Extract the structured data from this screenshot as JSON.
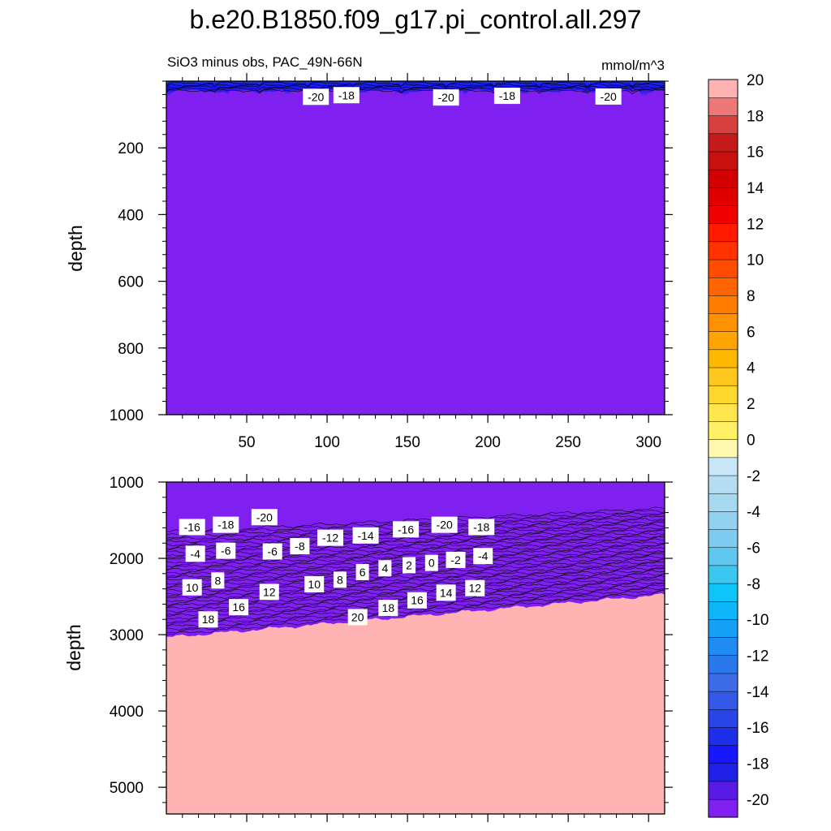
{
  "title": "b.e20.B1850.f09_g17.pi_control.all.297",
  "subtitle_left": "SiO3 minus obs, PAC_49N-66N",
  "units": "mmol/m^3",
  "chart_data": {
    "type": "contour",
    "xlim": [
      0,
      310
    ],
    "x_ticks": [
      50,
      100,
      150,
      200,
      250,
      300
    ],
    "panels": [
      {
        "name": "upper",
        "ylabel": "depth",
        "ylim": [
          0,
          1000
        ],
        "y_ticks": [
          200,
          400,
          600,
          800,
          1000
        ],
        "x_tick_labels_shown": true,
        "background_value": -21,
        "contour_labels": [
          {
            "text": "-20",
            "x": 93,
            "y": 47
          },
          {
            "text": "-18",
            "x": 112,
            "y": 42
          },
          {
            "text": "-20",
            "x": 174,
            "y": 49
          },
          {
            "text": "-18",
            "x": 212,
            "y": 44
          },
          {
            "text": "-20",
            "x": 275,
            "y": 46
          }
        ]
      },
      {
        "name": "lower",
        "ylabel": "depth",
        "ylim": [
          1000,
          5350
        ],
        "y_ticks": [
          1000,
          2000,
          3000,
          4000,
          5000
        ],
        "x_tick_labels_shown": false,
        "contour_labels": [
          {
            "text": "-16",
            "x": 16,
            "y": 1590
          },
          {
            "text": "-18",
            "x": 37,
            "y": 1560
          },
          {
            "text": "-20",
            "x": 61,
            "y": 1460
          },
          {
            "text": "-16",
            "x": 149,
            "y": 1620
          },
          {
            "text": "-20",
            "x": 173,
            "y": 1560
          },
          {
            "text": "-18",
            "x": 196,
            "y": 1590
          },
          {
            "text": "-12",
            "x": 102,
            "y": 1730
          },
          {
            "text": "-14",
            "x": 124,
            "y": 1700
          },
          {
            "text": "-8",
            "x": 83,
            "y": 1840
          },
          {
            "text": "-4",
            "x": 18,
            "y": 1940
          },
          {
            "text": "-6",
            "x": 37,
            "y": 1900
          },
          {
            "text": "-6",
            "x": 66,
            "y": 1910
          },
          {
            "text": "2",
            "x": 151,
            "y": 2090
          },
          {
            "text": "0",
            "x": 165,
            "y": 2060
          },
          {
            "text": "-2",
            "x": 180,
            "y": 2020
          },
          {
            "text": "-4",
            "x": 197,
            "y": 1970
          },
          {
            "text": "4",
            "x": 136,
            "y": 2130
          },
          {
            "text": "6",
            "x": 122,
            "y": 2180
          },
          {
            "text": "8",
            "x": 108,
            "y": 2280
          },
          {
            "text": "10",
            "x": 92,
            "y": 2340
          },
          {
            "text": "10",
            "x": 16,
            "y": 2380
          },
          {
            "text": "8",
            "x": 32,
            "y": 2290
          },
          {
            "text": "12",
            "x": 64,
            "y": 2440
          },
          {
            "text": "12",
            "x": 192,
            "y": 2390
          },
          {
            "text": "14",
            "x": 174,
            "y": 2450
          },
          {
            "text": "16",
            "x": 156,
            "y": 2550
          },
          {
            "text": "16",
            "x": 45,
            "y": 2640
          },
          {
            "text": "18",
            "x": 138,
            "y": 2650
          },
          {
            "text": "18",
            "x": 26,
            "y": 2800
          },
          {
            "text": "20",
            "x": 119,
            "y": 2770
          }
        ]
      }
    ],
    "colorbar": {
      "levels": [
        -20,
        -19,
        -18,
        -17,
        -16,
        -15,
        -14,
        -13,
        -12,
        -11,
        -10,
        -9,
        -8,
        -7,
        -6,
        -5,
        -4,
        -3,
        -2,
        -1,
        0,
        1,
        2,
        3,
        4,
        5,
        6,
        7,
        8,
        9,
        10,
        11,
        12,
        13,
        14,
        15,
        16,
        17,
        18,
        19,
        20
      ],
      "tick_labels": [
        "-20",
        "-18",
        "-16",
        "-14",
        "-12",
        "-10",
        "-8",
        "-6",
        "-4",
        "-2",
        "0",
        "2",
        "4",
        "6",
        "8",
        "10",
        "12",
        "14",
        "16",
        "18",
        "20"
      ],
      "colors": [
        "#8020f0",
        "#5a1ae6",
        "#1f1fe6",
        "#1717ff",
        "#1f2ee8",
        "#2a45e6",
        "#3458e8",
        "#3e6ce8",
        "#2a79ec",
        "#1e8cf2",
        "#14a0f5",
        "#0cb6f8",
        "#0fc4f8",
        "#3bc8f0",
        "#60c8f0",
        "#7ecdf0",
        "#92d2f0",
        "#a6d8f0",
        "#b6dcf2",
        "#c8e6f6",
        "#fff9b0",
        "#fff066",
        "#ffe64c",
        "#ffd82e",
        "#ffc81e",
        "#ffb800",
        "#ffa400",
        "#ff9000",
        "#ff7c00",
        "#ff6400",
        "#ff4c00",
        "#ff3200",
        "#ff1a00",
        "#f00000",
        "#e00000",
        "#d20000",
        "#c81010",
        "#c41a1a",
        "#d84040",
        "#ee7878",
        "#ffb3b3"
      ]
    }
  }
}
